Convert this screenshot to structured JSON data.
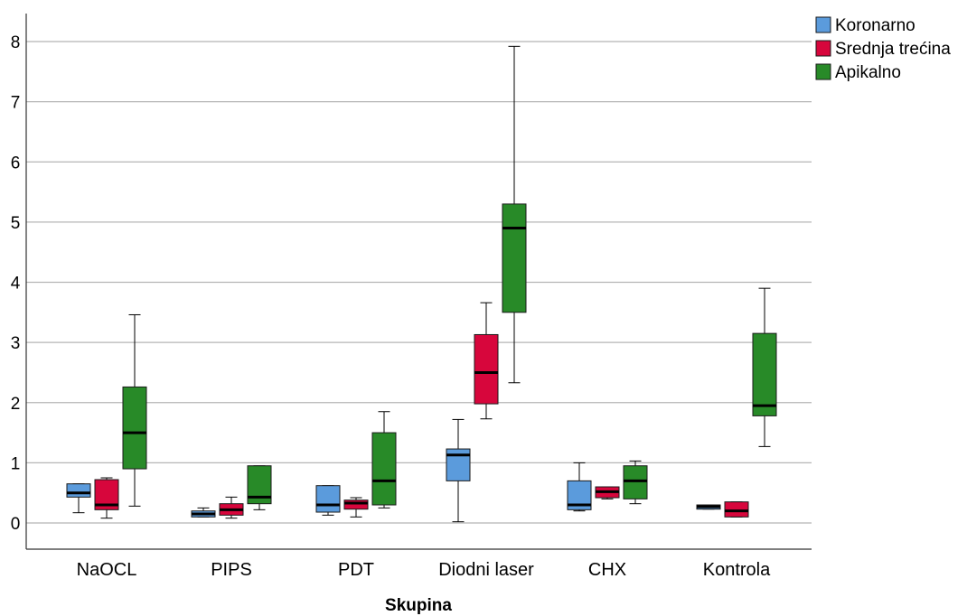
{
  "chart_data": {
    "type": "boxplot",
    "title": "",
    "xlabel": "Skupina",
    "ylabel": "",
    "ylim": [
      -0.45,
      8.5
    ],
    "yticks": [
      0,
      1,
      2,
      3,
      4,
      5,
      6,
      7,
      8
    ],
    "grid": true,
    "legend_position": "top-right",
    "categories": [
      "NaOCL",
      "PIPS",
      "PDT",
      "Diodni laser",
      "CHX",
      "Kontrola"
    ],
    "series": [
      {
        "name": "Koronarno",
        "color": "#5b9bdc",
        "boxes": [
          {
            "min": 0.17,
            "q1": 0.43,
            "median": 0.5,
            "q3": 0.65,
            "max": 0.65
          },
          {
            "min": 0.1,
            "q1": 0.1,
            "median": 0.15,
            "q3": 0.2,
            "max": 0.25
          },
          {
            "min": 0.13,
            "q1": 0.18,
            "median": 0.3,
            "q3": 0.62,
            "max": 0.62
          },
          {
            "min": 0.02,
            "q1": 0.7,
            "median": 1.13,
            "q3": 1.23,
            "max": 1.72
          },
          {
            "min": 0.2,
            "q1": 0.22,
            "median": 0.3,
            "q3": 0.7,
            "max": 1.0
          },
          {
            "min": 0.23,
            "q1": 0.23,
            "median": 0.27,
            "q3": 0.3,
            "max": 0.3
          }
        ]
      },
      {
        "name": "Srednja trećina",
        "color": "#d7063c",
        "boxes": [
          {
            "min": 0.08,
            "q1": 0.22,
            "median": 0.3,
            "q3": 0.72,
            "max": 0.75
          },
          {
            "min": 0.08,
            "q1": 0.13,
            "median": 0.22,
            "q3": 0.32,
            "max": 0.43
          },
          {
            "min": 0.1,
            "q1": 0.23,
            "median": 0.33,
            "q3": 0.38,
            "max": 0.42
          },
          {
            "min": 1.73,
            "q1": 1.98,
            "median": 2.5,
            "q3": 3.13,
            "max": 3.66
          },
          {
            "min": 0.4,
            "q1": 0.42,
            "median": 0.52,
            "q3": 0.6,
            "max": 0.6
          },
          {
            "min": 0.1,
            "q1": 0.1,
            "median": 0.2,
            "q3": 0.35,
            "max": 0.35
          }
        ]
      },
      {
        "name": "Apikalno",
        "color": "#288a28",
        "boxes": [
          {
            "min": 0.28,
            "q1": 0.9,
            "median": 1.5,
            "q3": 2.26,
            "max": 3.46
          },
          {
            "min": 0.22,
            "q1": 0.32,
            "median": 0.43,
            "q3": 0.95,
            "max": 0.95
          },
          {
            "min": 0.25,
            "q1": 0.3,
            "median": 0.7,
            "q3": 1.5,
            "max": 1.85
          },
          {
            "min": 2.33,
            "q1": 3.5,
            "median": 4.9,
            "q3": 5.3,
            "max": 7.92
          },
          {
            "min": 0.32,
            "q1": 0.4,
            "median": 0.7,
            "q3": 0.95,
            "max": 1.03
          },
          {
            "min": 1.27,
            "q1": 1.78,
            "median": 1.95,
            "q3": 3.15,
            "max": 3.9
          }
        ]
      }
    ]
  }
}
